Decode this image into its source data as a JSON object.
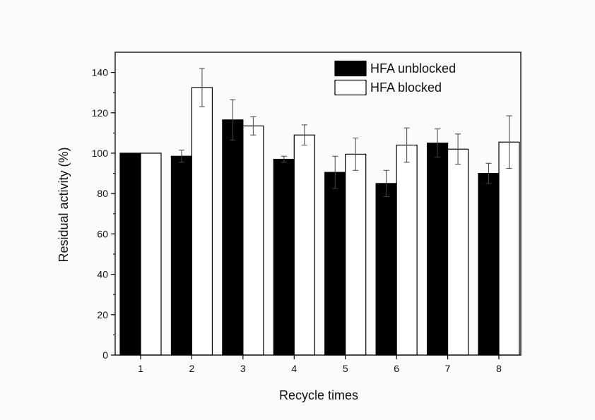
{
  "chart_data": {
    "type": "bar",
    "xlabel": "Recycle times",
    "ylabel": "Residual activity (%)",
    "ylim": [
      0,
      150
    ],
    "yticks": [
      0,
      20,
      40,
      60,
      80,
      100,
      120,
      140
    ],
    "categories": [
      "1",
      "2",
      "3",
      "4",
      "5",
      "6",
      "7",
      "8"
    ],
    "legend_position": "top-right",
    "grid": false,
    "series": [
      {
        "name": "HFA unblocked",
        "color": "#000000",
        "values": [
          100,
          98.5,
          116.5,
          97,
          90.5,
          85,
          105,
          90
        ],
        "errors": [
          0,
          3,
          10,
          1.5,
          8,
          6.5,
          7,
          5
        ]
      },
      {
        "name": "HFA blocked",
        "color": "#ffffff",
        "values": [
          100,
          132.5,
          113.5,
          109,
          99.5,
          104,
          102,
          105.5
        ],
        "errors": [
          0,
          9.5,
          4.5,
          5,
          8,
          8.5,
          7.5,
          13
        ]
      }
    ]
  }
}
